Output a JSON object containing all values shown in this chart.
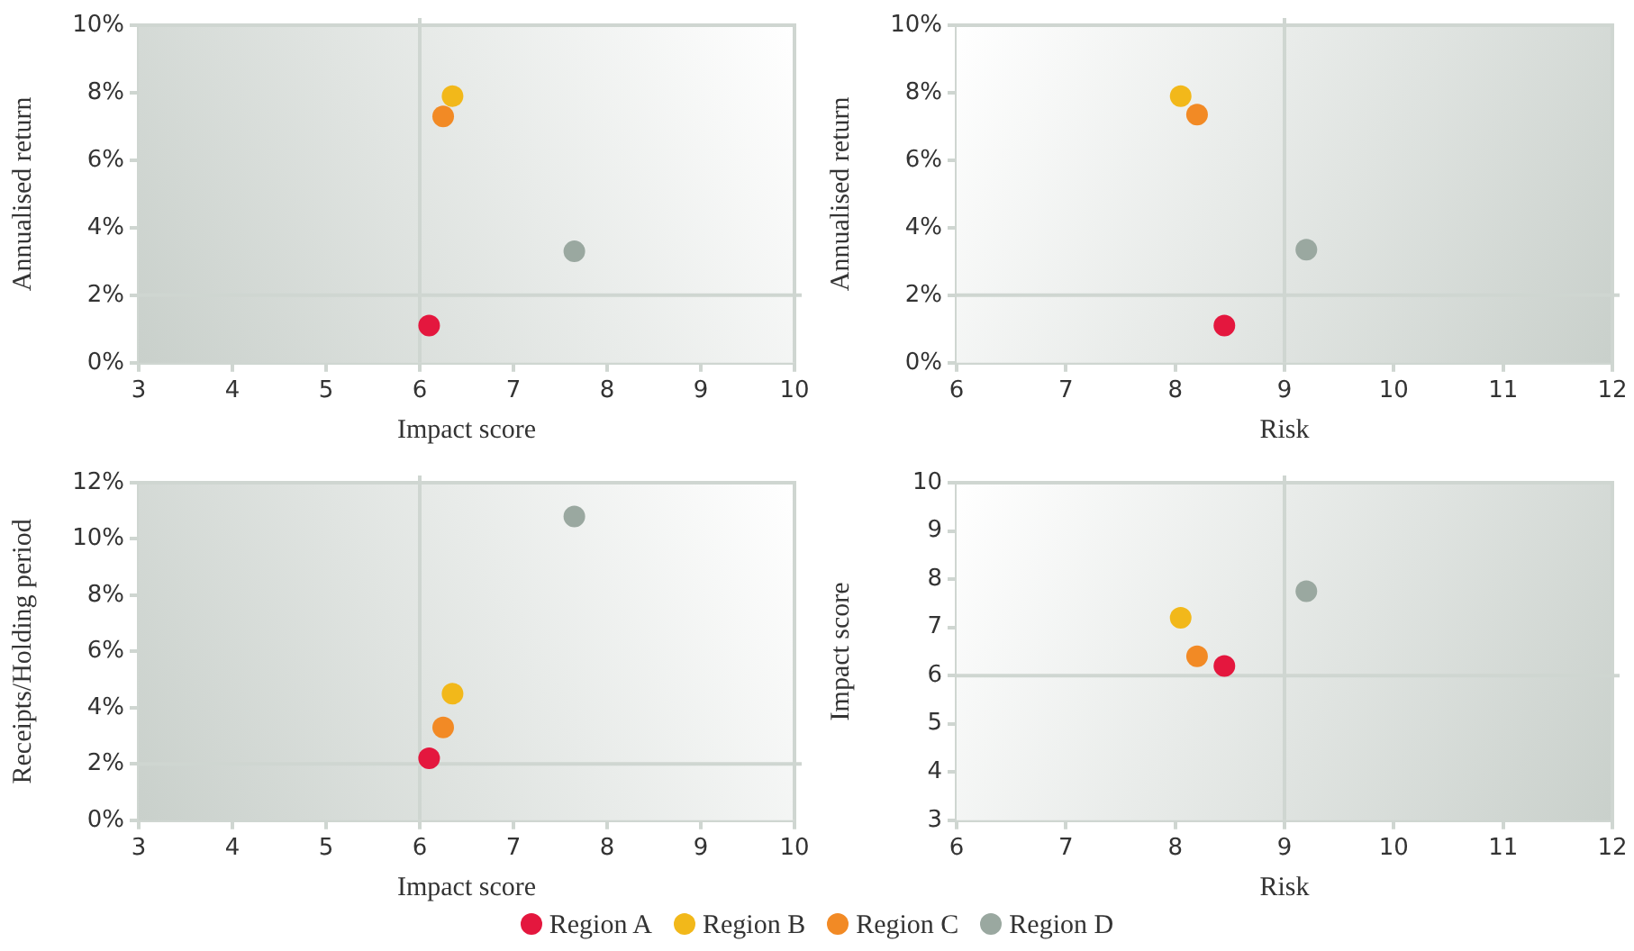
{
  "chart_data": [
    {
      "type": "scatter",
      "xlabel": "Impact score",
      "ylabel": "Annualised return",
      "xlim": [
        3,
        10
      ],
      "xticks": [
        3,
        4,
        5,
        6,
        7,
        8,
        9,
        10
      ],
      "ylim": [
        0,
        10
      ],
      "yticks": [
        {
          "value": 0,
          "label": "0%"
        },
        {
          "value": 2,
          "label": "2%"
        },
        {
          "value": 4,
          "label": "4%"
        },
        {
          "value": 6,
          "label": "6%"
        },
        {
          "value": 8,
          "label": "8%"
        },
        {
          "value": 10,
          "label": "10%"
        }
      ],
      "marker": "circle",
      "ref_lines": [
        {
          "axis": "x",
          "value": 6
        },
        {
          "axis": "y",
          "value": 2
        }
      ],
      "series": [
        {
          "color": "#e4173e",
          "x": [
            6.1
          ],
          "values": [
            1.1
          ]
        },
        {
          "color": "#f2b81a",
          "x": [
            6.35
          ],
          "values": [
            7.9
          ]
        },
        {
          "color": "#f28a25",
          "x": [
            6.25
          ],
          "values": [
            7.3
          ]
        },
        {
          "color": "#9aa8a0",
          "x": [
            7.65
          ],
          "values": [
            3.3
          ]
        }
      ]
    },
    {
      "type": "scatter",
      "xlabel": "Risk",
      "ylabel": "Annualised return",
      "xlim": [
        6,
        12
      ],
      "xticks": [
        6,
        7,
        8,
        9,
        10,
        11,
        12
      ],
      "ylim": [
        0,
        10
      ],
      "yticks": [
        {
          "value": 0,
          "label": "0%"
        },
        {
          "value": 2,
          "label": "2%"
        },
        {
          "value": 4,
          "label": "4%"
        },
        {
          "value": 6,
          "label": "6%"
        },
        {
          "value": 8,
          "label": "8%"
        },
        {
          "value": 10,
          "label": "10%"
        }
      ],
      "marker": "circle",
      "ref_lines": [
        {
          "axis": "x",
          "value": 9
        },
        {
          "axis": "y",
          "value": 2
        }
      ],
      "series": [
        {
          "color": "#e4173e",
          "x": [
            8.45
          ],
          "values": [
            1.1
          ]
        },
        {
          "color": "#f2b81a",
          "x": [
            8.05
          ],
          "values": [
            7.9
          ]
        },
        {
          "color": "#f28a25",
          "x": [
            8.2
          ],
          "values": [
            7.35
          ]
        },
        {
          "color": "#9aa8a0",
          "x": [
            9.2
          ],
          "values": [
            3.35
          ]
        }
      ]
    },
    {
      "type": "scatter",
      "xlabel": "Impact score",
      "ylabel": "Receipts/Holding period",
      "xlim": [
        3,
        10
      ],
      "xticks": [
        3,
        4,
        5,
        6,
        7,
        8,
        9,
        10
      ],
      "ylim": [
        0,
        12
      ],
      "yticks": [
        {
          "value": 0,
          "label": "0%"
        },
        {
          "value": 2,
          "label": "2%"
        },
        {
          "value": 4,
          "label": "4%"
        },
        {
          "value": 6,
          "label": "6%"
        },
        {
          "value": 8,
          "label": "8%"
        },
        {
          "value": 10,
          "label": "10%"
        },
        {
          "value": 12,
          "label": "12%"
        }
      ],
      "marker": "circle",
      "ref_lines": [
        {
          "axis": "x",
          "value": 6
        },
        {
          "axis": "y",
          "value": 2
        }
      ],
      "series": [
        {
          "color": "#e4173e",
          "x": [
            6.1
          ],
          "values": [
            2.2
          ]
        },
        {
          "color": "#f2b81a",
          "x": [
            6.35
          ],
          "values": [
            4.5
          ]
        },
        {
          "color": "#f28a25",
          "x": [
            6.25
          ],
          "values": [
            3.3
          ]
        },
        {
          "color": "#9aa8a0",
          "x": [
            7.65
          ],
          "values": [
            10.8
          ]
        }
      ]
    },
    {
      "type": "scatter",
      "xlabel": "Risk",
      "ylabel": "Impact score",
      "xlim": [
        6,
        12
      ],
      "xticks": [
        6,
        7,
        8,
        9,
        10,
        11,
        12
      ],
      "ylim": [
        3,
        10
      ],
      "yticks": [
        3,
        4,
        5,
        6,
        7,
        8,
        9,
        10
      ],
      "marker": "circle",
      "legend": "bottom",
      "ref_lines": [
        {
          "axis": "x",
          "value": 9
        },
        {
          "axis": "y",
          "value": 6
        }
      ],
      "series": [
        {
          "name": "Region A",
          "color": "#e4173e",
          "x": [
            8.45
          ],
          "values": [
            6.2
          ]
        },
        {
          "name": "Region B",
          "color": "#f2b81a",
          "x": [
            8.05
          ],
          "values": [
            7.2
          ]
        },
        {
          "name": "Region C",
          "color": "#f28a25",
          "x": [
            8.2
          ],
          "values": [
            6.4
          ]
        },
        {
          "name": "Region D",
          "color": "#9aa8a0",
          "x": [
            9.2
          ],
          "values": [
            7.75
          ]
        }
      ]
    }
  ]
}
